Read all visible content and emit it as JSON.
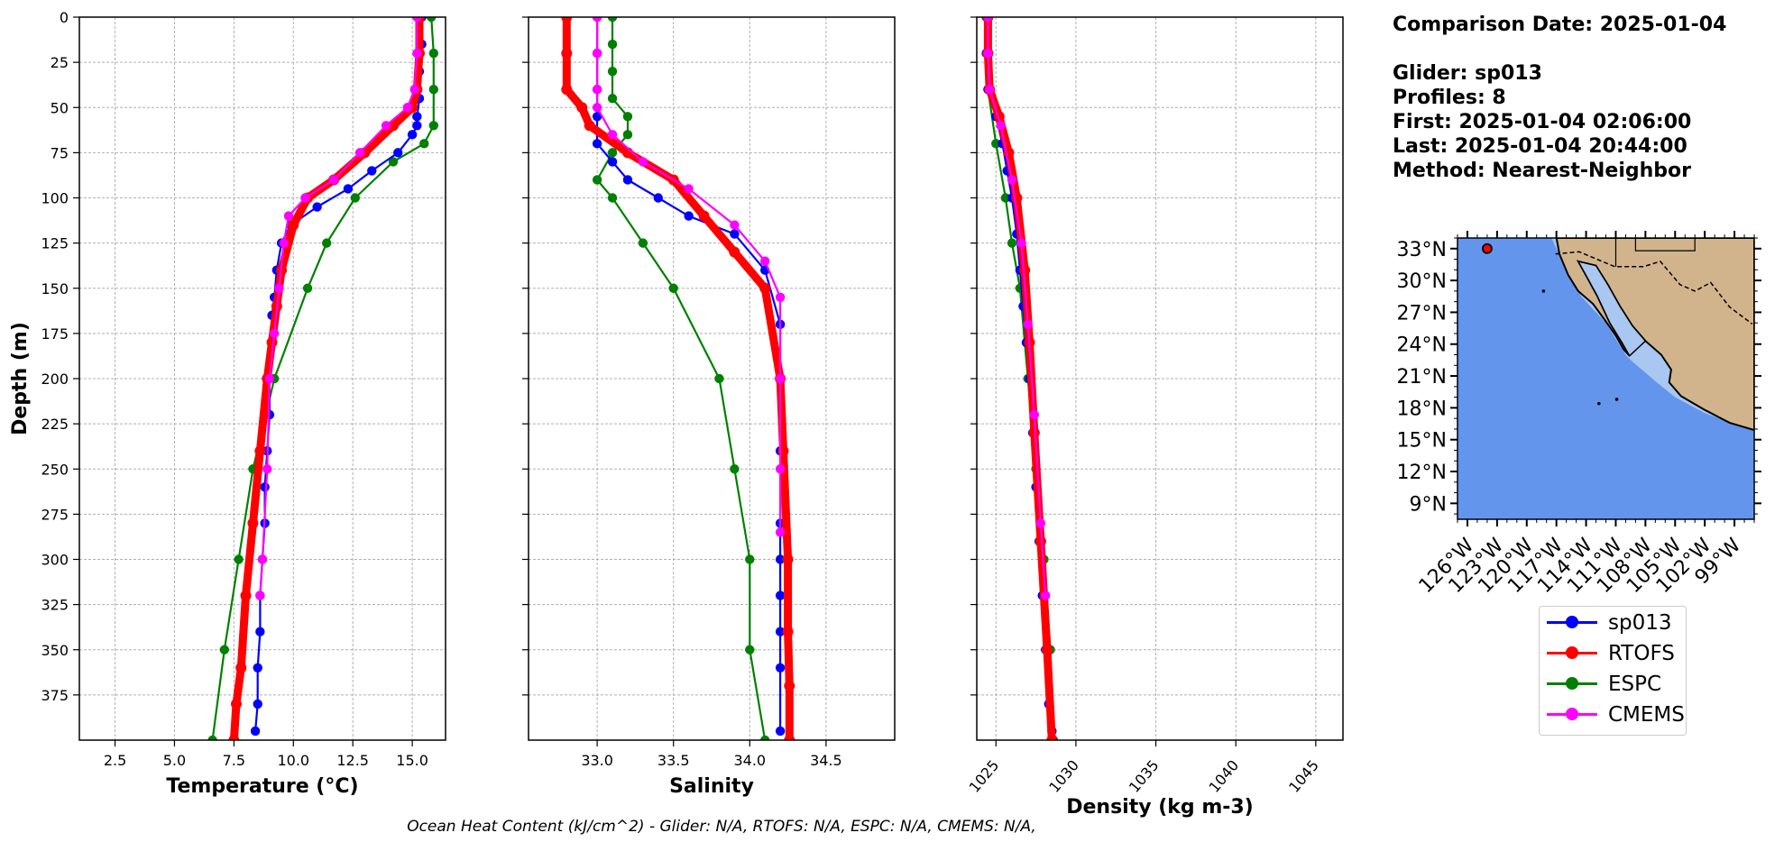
{
  "chart_data": [
    {
      "type": "line",
      "panel": "temperature",
      "xlabel": "Temperature (°C)",
      "ylabel": "Depth (m)",
      "xlim": [
        1.0,
        16.4
      ],
      "ylim": [
        400,
        0
      ],
      "x_ticks": [
        "2.5",
        "5.0",
        "7.5",
        "10.0",
        "12.5",
        "15.0"
      ],
      "y_ticks": [
        "0",
        "25",
        "50",
        "75",
        "100",
        "125",
        "150",
        "175",
        "200",
        "225",
        "250",
        "275",
        "300",
        "325",
        "350",
        "375"
      ],
      "grid": true,
      "series": [
        {
          "name": "sp013",
          "color": "#0000ff",
          "style": "line-dots",
          "x": [
            15.4,
            15.4,
            15.3,
            15.3,
            15.2,
            15.2,
            15.0,
            14.4,
            13.3,
            12.3,
            11.0,
            9.9,
            9.5,
            9.3,
            9.2,
            9.1,
            9.1,
            9.0,
            9.0,
            8.9,
            8.8,
            8.8,
            8.7,
            8.6,
            8.6,
            8.5,
            8.5,
            8.4
          ],
          "y": [
            0,
            15,
            30,
            45,
            55,
            60,
            65,
            75,
            85,
            95,
            105,
            115,
            125,
            140,
            155,
            165,
            180,
            200,
            220,
            240,
            260,
            280,
            300,
            320,
            340,
            360,
            380,
            395
          ]
        },
        {
          "name": "RTOFS",
          "color": "#ff0000",
          "style": "thick-line-dots",
          "x": [
            15.3,
            15.3,
            15.2,
            15.0,
            14.2,
            13.0,
            11.7,
            10.6,
            10.0,
            9.5,
            9.3,
            9.1,
            8.9,
            8.6,
            8.3,
            8.0,
            7.8,
            7.6,
            7.5
          ],
          "y": [
            0,
            20,
            40,
            50,
            60,
            75,
            90,
            100,
            115,
            140,
            160,
            180,
            200,
            240,
            280,
            320,
            360,
            380,
            400
          ]
        },
        {
          "name": "ESPC",
          "color": "#008000",
          "style": "line-dots",
          "x": [
            15.8,
            15.9,
            15.9,
            15.9,
            15.5,
            14.2,
            12.6,
            11.4,
            10.6,
            9.2,
            8.3,
            7.7,
            7.1,
            6.6
          ],
          "y": [
            0,
            20,
            40,
            60,
            70,
            80,
            100,
            125,
            150,
            200,
            250,
            300,
            350,
            400
          ]
        },
        {
          "name": "CMEMS",
          "color": "#ff00ff",
          "style": "line-dots",
          "x": [
            15.2,
            15.2,
            15.1,
            14.8,
            13.9,
            12.8,
            11.7,
            10.5,
            9.8,
            9.6,
            9.4,
            9.2,
            9.0,
            8.9,
            8.7,
            8.6
          ],
          "y": [
            0,
            20,
            40,
            50,
            60,
            75,
            90,
            100,
            110,
            125,
            150,
            175,
            200,
            250,
            300,
            320
          ]
        }
      ]
    },
    {
      "type": "line",
      "panel": "salinity",
      "xlabel": "Salinity",
      "xlim": [
        32.55,
        34.95
      ],
      "ylim": [
        400,
        0
      ],
      "x_ticks": [
        "33.0",
        "33.5",
        "34.0",
        "34.5"
      ],
      "grid": true,
      "series": [
        {
          "name": "sp013",
          "color": "#0000ff",
          "style": "line-dots",
          "x": [
            33.0,
            33.0,
            33.0,
            33.0,
            33.0,
            33.1,
            33.2,
            33.4,
            33.6,
            33.9,
            34.1,
            34.2,
            34.2,
            34.2,
            34.2,
            34.2,
            34.2,
            34.2,
            34.2,
            34.2
          ],
          "y": [
            0,
            20,
            40,
            55,
            70,
            80,
            90,
            100,
            110,
            120,
            140,
            170,
            200,
            240,
            280,
            300,
            320,
            340,
            360,
            395
          ]
        },
        {
          "name": "RTOFS",
          "color": "#ff0000",
          "style": "thick-line-dots",
          "x": [
            32.8,
            32.8,
            32.8,
            32.9,
            32.95,
            33.2,
            33.5,
            33.7,
            33.9,
            34.1,
            34.2,
            34.22,
            34.25,
            34.25,
            34.26,
            34.26
          ],
          "y": [
            0,
            20,
            40,
            50,
            60,
            75,
            90,
            110,
            130,
            150,
            200,
            240,
            300,
            340,
            370,
            400
          ]
        },
        {
          "name": "ESPC",
          "color": "#008000",
          "style": "line-dots",
          "x": [
            33.1,
            33.1,
            33.1,
            33.1,
            33.2,
            33.2,
            33.1,
            33.0,
            33.1,
            33.3,
            33.5,
            33.8,
            33.9,
            34.0,
            34.0,
            34.1
          ],
          "y": [
            0,
            15,
            30,
            45,
            55,
            65,
            75,
            90,
            100,
            125,
            150,
            200,
            250,
            300,
            350,
            400
          ]
        },
        {
          "name": "CMEMS",
          "color": "#ff00ff",
          "style": "line-dots",
          "x": [
            33.0,
            33.0,
            33.0,
            33.0,
            33.1,
            33.3,
            33.6,
            33.9,
            34.1,
            34.2,
            34.2,
            34.2,
            34.2
          ],
          "y": [
            0,
            20,
            40,
            50,
            65,
            80,
            95,
            115,
            135,
            155,
            200,
            250,
            285
          ]
        }
      ]
    },
    {
      "type": "line",
      "panel": "density",
      "xlabel": "Density (kg m-3)",
      "xlim": [
        1023.8,
        1046.7
      ],
      "ylim": [
        400,
        0
      ],
      "x_ticks": [
        "1025",
        "1030",
        "1035",
        "1040",
        "1045"
      ],
      "grid": true,
      "series": [
        {
          "name": "sp013",
          "color": "#0000ff",
          "style": "line-dots",
          "x": [
            1024.4,
            1024.4,
            1024.5,
            1025.0,
            1025.4,
            1025.7,
            1026.0,
            1026.3,
            1026.5,
            1026.7,
            1026.9,
            1027.1,
            1027.3,
            1027.5,
            1027.7,
            1027.9,
            1028.1,
            1028.3,
            1028.5
          ],
          "y": [
            0,
            20,
            40,
            55,
            70,
            85,
            100,
            120,
            140,
            160,
            180,
            200,
            230,
            260,
            290,
            320,
            350,
            380,
            395
          ]
        },
        {
          "name": "RTOFS",
          "color": "#ff0000",
          "style": "thick-line-dots",
          "x": [
            1024.5,
            1024.5,
            1024.6,
            1025.2,
            1025.8,
            1026.3,
            1026.8,
            1027.1,
            1027.4,
            1027.8,
            1028.2,
            1028.5
          ],
          "y": [
            0,
            20,
            40,
            55,
            75,
            100,
            140,
            180,
            230,
            290,
            350,
            400
          ]
        },
        {
          "name": "ESPC",
          "color": "#008000",
          "style": "line-dots",
          "x": [
            1024.4,
            1024.4,
            1024.5,
            1025.0,
            1025.6,
            1026.0,
            1026.5,
            1027.0,
            1027.5,
            1028.0,
            1028.4,
            1028.6
          ],
          "y": [
            0,
            20,
            40,
            70,
            100,
            125,
            150,
            200,
            250,
            300,
            350,
            400
          ]
        },
        {
          "name": "CMEMS",
          "color": "#ff00ff",
          "style": "line-dots",
          "x": [
            1024.5,
            1024.5,
            1024.6,
            1025.3,
            1026.0,
            1026.6,
            1027.0,
            1027.4,
            1027.8,
            1028.1
          ],
          "y": [
            0,
            20,
            40,
            60,
            90,
            125,
            170,
            220,
            280,
            320
          ]
        }
      ]
    },
    {
      "type": "map",
      "panel": "location",
      "lat_ticks": [
        "33°N",
        "30°N",
        "27°N",
        "24°N",
        "21°N",
        "18°N",
        "15°N",
        "12°N",
        "9°N"
      ],
      "lon_ticks": [
        "126°W",
        "123°W",
        "120°W",
        "117°W",
        "114°W",
        "111°W",
        "108°W",
        "105°W",
        "102°W",
        "99°W"
      ],
      "lon_range": [
        -127,
        -97
      ],
      "lat_range": [
        7.5,
        34
      ],
      "marker": {
        "lon": -124.0,
        "lat": 33.0,
        "color": "#ff0000"
      }
    }
  ],
  "info": {
    "line1": "Comparison Date: 2025-01-04",
    "line2": "Glider: sp013",
    "line3": "Profiles: 8",
    "line4": "First: 2025-01-04 02:06:00",
    "line5": "Last: 2025-01-04 20:44:00",
    "line6": "Method: Nearest-Neighbor"
  },
  "legend": {
    "items": [
      {
        "label": "sp013",
        "color": "#0000ff"
      },
      {
        "label": "RTOFS",
        "color": "#ff0000"
      },
      {
        "label": "ESPC",
        "color": "#008000"
      },
      {
        "label": "CMEMS",
        "color": "#ff00ff"
      }
    ]
  },
  "footer": "Ocean Heat Content (kJ/cm^2) - Glider: N/A,  RTOFS: N/A,  ESPC: N/A,  CMEMS: N/A,"
}
